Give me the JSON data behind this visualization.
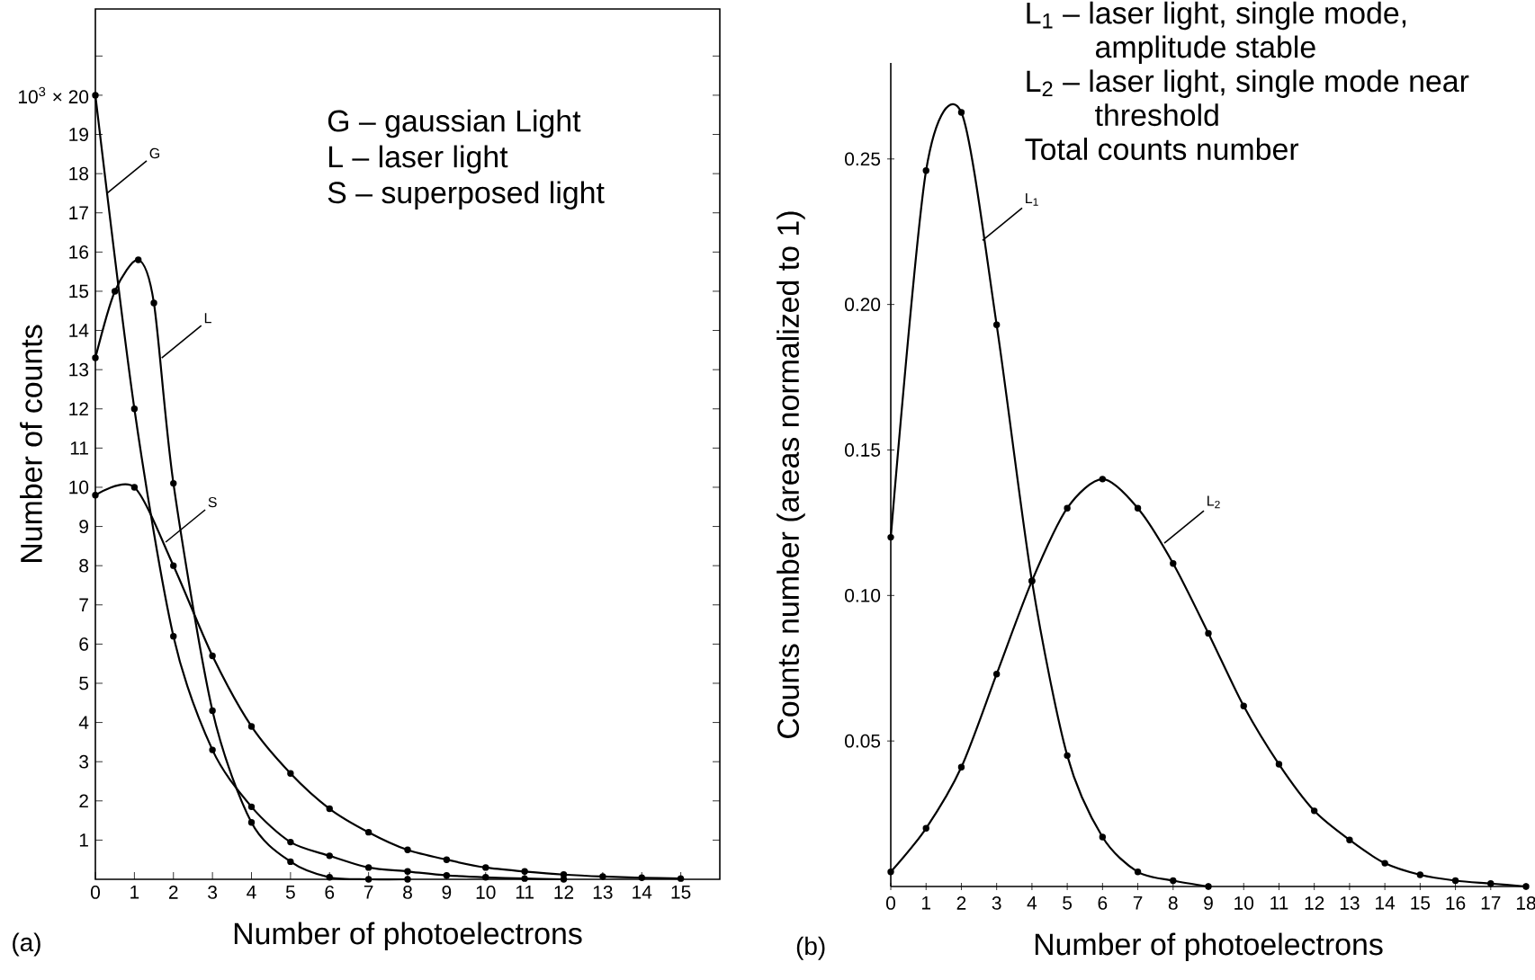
{
  "chart_data": [
    {
      "type": "line",
      "title": "(a)",
      "xlabel": "Number of photoelectrons",
      "ylabel": "Number of counts",
      "xlim": [
        0,
        16
      ],
      "ylim": [
        0,
        22.2
      ],
      "xticks": [
        0,
        1,
        2,
        3,
        4,
        5,
        6,
        7,
        8,
        9,
        10,
        11,
        12,
        13,
        14,
        15
      ],
      "yticks": [
        1,
        2,
        3,
        4,
        5,
        6,
        7,
        8,
        9,
        10,
        11,
        12,
        13,
        14,
        15,
        16,
        17,
        18,
        19,
        {
          "value": 20,
          "label": "10$^{3}$ × 20"
        },
        {
          "value": 21,
          "label": null
        }
      ],
      "marker": "circle",
      "line_style": "solid",
      "series": [
        {
          "color": "#000000",
          "x": [
            0,
            1,
            2,
            3,
            4,
            5,
            6,
            7,
            8,
            9,
            10,
            11,
            12
          ],
          "values": [
            20,
            12,
            6.2,
            3.3,
            1.85,
            0.95,
            0.6,
            0.3,
            0.2,
            0.1,
            0.05,
            0.02,
            0
          ]
        },
        {
          "color": "#000000",
          "x": [
            0,
            0.5,
            1.1,
            1.5,
            2,
            3,
            4,
            5,
            6,
            7,
            8
          ],
          "values": [
            13.3,
            15.0,
            15.8,
            14.7,
            10.1,
            4.3,
            1.45,
            0.45,
            0.05,
            0,
            0
          ]
        },
        {
          "color": "#000000",
          "x": [
            0,
            1,
            2,
            3,
            4,
            5,
            6,
            7,
            8,
            9,
            10,
            11,
            12,
            13,
            14,
            15
          ],
          "values": [
            9.8,
            10,
            8.0,
            5.7,
            3.9,
            2.7,
            1.8,
            1.2,
            0.75,
            0.5,
            0.3,
            0.2,
            0.12,
            0.07,
            0.04,
            0.02
          ]
        }
      ],
      "annotations": [
        "G – gaussian Light",
        "L – laser light",
        "S – superposed light",
        {
          "text": "G",
          "x": 0.3,
          "y": 17.5
        },
        {
          "text": "L",
          "x": 1.7,
          "y": 13.3
        },
        {
          "text": "S",
          "x": 1.8,
          "y": 8.6
        }
      ]
    },
    {
      "type": "line",
      "title": "(b)",
      "xlabel": "Number of photoelectrons",
      "ylabel": "Counts number (areas normalized to 1)",
      "xlim": [
        0,
        18
      ],
      "ylim": [
        0,
        0.283
      ],
      "xticks": [
        0,
        1,
        2,
        3,
        4,
        5,
        6,
        7,
        8,
        9,
        10,
        11,
        12,
        13,
        14,
        15,
        16,
        17,
        18
      ],
      "yticks": [
        0.05,
        {
          "value": 0.1,
          "label": "0.10"
        },
        0.15,
        {
          "value": 0.2,
          "label": "0.20"
        },
        0.25
      ],
      "marker": "circle",
      "line_style": "solid",
      "series": [
        {
          "color": "#000000",
          "x": [
            0,
            1,
            2,
            3,
            4,
            5,
            6,
            7,
            8,
            9
          ],
          "values": [
            0.12,
            0.246,
            0.266,
            0.193,
            0.105,
            0.045,
            0.017,
            0.005,
            0.002,
            0
          ]
        },
        {
          "color": "#000000",
          "x": [
            0,
            1,
            2,
            3,
            4,
            5,
            6,
            7,
            8,
            9,
            10,
            11,
            12,
            13,
            14,
            15,
            16,
            17,
            18
          ],
          "values": [
            0.005,
            0.02,
            0.041,
            0.073,
            0.105,
            0.13,
            0.14,
            0.13,
            0.111,
            0.087,
            0.062,
            0.042,
            0.026,
            0.016,
            0.008,
            0.004,
            0.002,
            0.001,
            0
          ]
        }
      ],
      "annotations": [
        "L$_{1}$ – laser light, single mode, amplitude stable",
        "L$_{2}$ – laser light, single mode near threshold",
        "Total counts number",
        {
          "text": "L$_{1}$",
          "x": 2.6,
          "y": 0.222
        },
        {
          "text": "L$_{2}$",
          "x": 7.75,
          "y": 0.118
        }
      ]
    }
  ]
}
